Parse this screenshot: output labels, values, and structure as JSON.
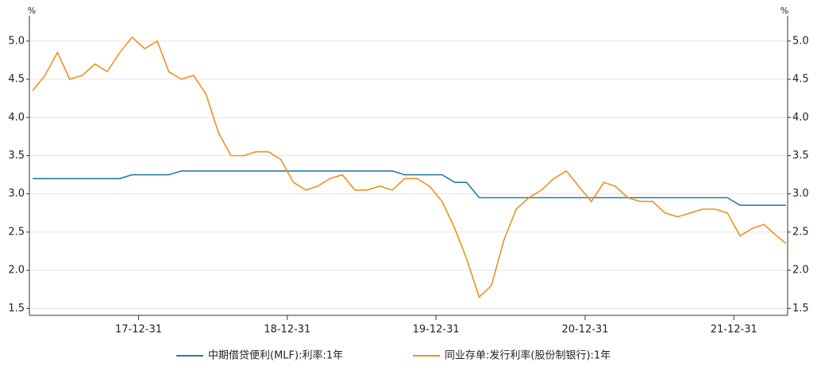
{
  "chart_data": {
    "type": "line",
    "y_unit": "%",
    "y2_unit": "%",
    "x": [
      "17-04-15",
      "17-05-15",
      "17-06-15",
      "17-07-15",
      "17-08-15",
      "17-09-15",
      "17-10-15",
      "17-11-15",
      "17-12-15",
      "18-01-15",
      "18-02-15",
      "18-03-15",
      "18-04-15",
      "18-05-15",
      "18-06-15",
      "18-07-15",
      "18-08-15",
      "18-09-15",
      "18-10-15",
      "18-11-15",
      "18-12-15",
      "19-01-15",
      "19-02-15",
      "19-03-15",
      "19-04-15",
      "19-05-15",
      "19-06-15",
      "19-07-15",
      "19-08-15",
      "19-09-15",
      "19-10-15",
      "19-11-15",
      "19-12-15",
      "20-01-15",
      "20-02-15",
      "20-03-15",
      "20-04-15",
      "20-05-15",
      "20-06-15",
      "20-07-15",
      "20-08-15",
      "20-09-15",
      "20-10-15",
      "20-11-15",
      "20-12-15",
      "21-01-15",
      "21-02-15",
      "21-03-15",
      "21-04-15",
      "21-05-15",
      "21-06-15",
      "21-07-15",
      "21-08-15",
      "21-09-15",
      "21-10-15",
      "21-11-15",
      "21-12-15",
      "22-01-15",
      "22-02-15",
      "22-03-15",
      "22-04-15",
      "22-05-08"
    ],
    "series": [
      {
        "name": "中期借贷便利(MLF):利率:1年",
        "color": "#2b7aa6",
        "values": [
          3.2,
          3.2,
          3.2,
          3.2,
          3.2,
          3.2,
          3.2,
          3.2,
          3.25,
          3.25,
          3.25,
          3.25,
          3.3,
          3.3,
          3.3,
          3.3,
          3.3,
          3.3,
          3.3,
          3.3,
          3.3,
          3.3,
          3.3,
          3.3,
          3.3,
          3.3,
          3.3,
          3.3,
          3.3,
          3.3,
          3.25,
          3.25,
          3.25,
          3.25,
          3.15,
          3.15,
          2.95,
          2.95,
          2.95,
          2.95,
          2.95,
          2.95,
          2.95,
          2.95,
          2.95,
          2.95,
          2.95,
          2.95,
          2.95,
          2.95,
          2.95,
          2.95,
          2.95,
          2.95,
          2.95,
          2.95,
          2.95,
          2.85,
          2.85,
          2.85,
          2.85,
          2.85
        ]
      },
      {
        "name": "同业存单:发行利率(股份制银行):1年",
        "color": "#f0901e",
        "values": [
          4.35,
          4.55,
          4.85,
          4.5,
          4.55,
          4.7,
          4.6,
          4.85,
          5.05,
          4.9,
          5.0,
          4.6,
          4.5,
          4.55,
          4.3,
          3.8,
          3.5,
          3.5,
          3.55,
          3.55,
          3.45,
          3.15,
          3.05,
          3.1,
          3.2,
          3.25,
          3.05,
          3.05,
          3.1,
          3.05,
          3.2,
          3.2,
          3.1,
          2.9,
          2.55,
          2.15,
          1.65,
          1.8,
          2.4,
          2.8,
          2.95,
          3.05,
          3.2,
          3.3,
          3.1,
          2.9,
          3.15,
          3.1,
          2.95,
          2.9,
          2.9,
          2.75,
          2.7,
          2.75,
          2.8,
          2.8,
          2.75,
          2.45,
          2.55,
          2.6,
          2.45,
          2.35
        ]
      }
    ],
    "xlim": [
      "17-04-07",
      "22-05-12"
    ],
    "xticks": [
      "17-12-31",
      "18-12-31",
      "19-12-31",
      "20-12-31",
      "21-12-31"
    ],
    "ylim": [
      1.41,
      5.33
    ],
    "yticks": [
      {
        "value": 1.5,
        "label": "1.5"
      },
      {
        "value": 2,
        "label": "2.0"
      },
      2.5,
      {
        "value": 3,
        "label": "3.0"
      },
      3.5,
      {
        "value": 4,
        "label": "4.0"
      },
      4.5,
      {
        "value": 5,
        "label": "5.0"
      }
    ],
    "y2lim": [
      1.41,
      5.33
    ],
    "y2ticks": [
      {
        "value": 1.5,
        "label": "1.5"
      },
      {
        "value": 2,
        "label": "2.0"
      },
      2.5,
      {
        "value": 3,
        "label": "3.0"
      },
      3.5,
      {
        "value": 4,
        "label": "4.0"
      },
      4.5,
      {
        "value": 5,
        "label": "5.0"
      }
    ],
    "grid": true
  }
}
